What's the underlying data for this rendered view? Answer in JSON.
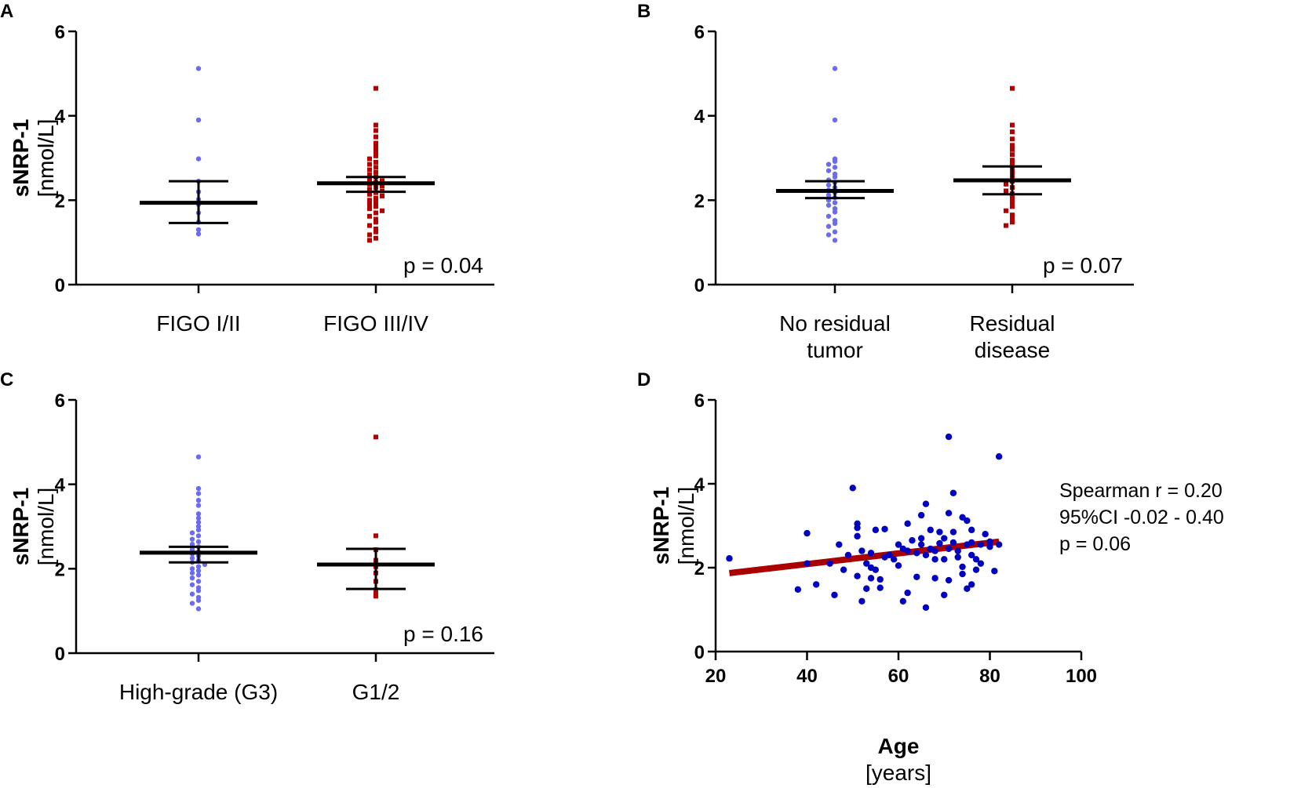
{
  "colors": {
    "blue_light": "#6b6bef",
    "red_dark": "#b30000",
    "blue_dark": "#0000c0",
    "fit_line": "#aa0000",
    "axis": "#000000"
  },
  "chart_data": [
    {
      "panel": "A",
      "type": "scatter",
      "title": "",
      "ylabel": "sNRP-1",
      "ylabel_unit": "[nmol/L]",
      "ylim": [
        0,
        6
      ],
      "yticks": [
        "0",
        "2",
        "4",
        "6"
      ],
      "pvalue": "p = 0.04",
      "groups": [
        {
          "label": "FIGO I/II",
          "label_lines": [
            "FIGO I/II"
          ],
          "color": "#6b6bef",
          "marker": "circle",
          "center": 1.94,
          "ci_low": 1.46,
          "ci_high": 2.45,
          "values": [
            5.12,
            3.9,
            2.98,
            2.45,
            2.2,
            2.02,
            1.9,
            1.7,
            1.48,
            1.3,
            1.2
          ]
        },
        {
          "label": "FIGO III/IV",
          "label_lines": [
            "FIGO III/IV"
          ],
          "color": "#b30000",
          "marker": "square",
          "center": 2.4,
          "ci_low": 2.2,
          "ci_high": 2.55,
          "values": [
            4.65,
            3.78,
            3.65,
            3.5,
            3.35,
            3.25,
            3.15,
            3.05,
            2.98,
            2.9,
            2.85,
            2.78,
            2.72,
            2.66,
            2.6,
            2.55,
            2.5,
            2.46,
            2.42,
            2.38,
            2.34,
            2.3,
            2.26,
            2.22,
            2.18,
            2.14,
            2.1,
            2.05,
            2.0,
            1.95,
            1.9,
            1.85,
            1.8,
            1.75,
            1.7,
            1.62,
            1.55,
            1.48,
            1.4,
            1.32,
            1.25,
            1.18,
            1.1,
            1.05
          ]
        }
      ]
    },
    {
      "panel": "B",
      "type": "scatter",
      "title": "",
      "ylabel": "sNRP-1",
      "ylabel_unit": "[nmol/L]",
      "ylim": [
        0,
        6
      ],
      "yticks": [
        "0",
        "2",
        "4",
        "6"
      ],
      "pvalue": "p = 0.07",
      "groups": [
        {
          "label": "No residual tumor",
          "label_lines": [
            "No residual",
            "tumor"
          ],
          "color": "#6b6bef",
          "marker": "circle",
          "center": 2.22,
          "ci_low": 2.05,
          "ci_high": 2.45,
          "values": [
            5.12,
            3.9,
            2.98,
            2.92,
            2.85,
            2.78,
            2.7,
            2.62,
            2.55,
            2.48,
            2.42,
            2.36,
            2.3,
            2.24,
            2.18,
            2.12,
            2.06,
            2.0,
            1.94,
            1.88,
            1.8,
            1.72,
            1.62,
            1.52,
            1.45,
            1.38,
            1.25,
            1.18,
            1.05
          ]
        },
        {
          "label": "Residual disease",
          "label_lines": [
            "Residual",
            "disease"
          ],
          "color": "#b30000",
          "marker": "square",
          "center": 2.47,
          "ci_low": 2.14,
          "ci_high": 2.8,
          "values": [
            4.65,
            3.78,
            3.62,
            3.45,
            3.3,
            3.2,
            3.08,
            2.95,
            2.85,
            2.75,
            2.65,
            2.55,
            2.45,
            2.38,
            2.3,
            2.22,
            2.15,
            2.05,
            1.95,
            1.85,
            1.75,
            1.65,
            1.55,
            1.48,
            1.4
          ]
        }
      ]
    },
    {
      "panel": "C",
      "type": "scatter",
      "title": "",
      "ylabel": "sNRP-1",
      "ylabel_unit": "[nmol/L]",
      "ylim": [
        0,
        6
      ],
      "yticks": [
        "0",
        "2",
        "4",
        "6"
      ],
      "pvalue": "p = 0.16",
      "groups": [
        {
          "label": "High-grade (G3)",
          "label_lines": [
            "High-grade (G3)"
          ],
          "color": "#6b6bef",
          "marker": "circle",
          "center": 2.38,
          "ci_low": 2.15,
          "ci_high": 2.52,
          "values": [
            4.65,
            3.9,
            3.78,
            3.62,
            3.5,
            3.3,
            3.2,
            3.1,
            3.0,
            2.92,
            2.85,
            2.78,
            2.7,
            2.64,
            2.58,
            2.52,
            2.46,
            2.4,
            2.35,
            2.3,
            2.25,
            2.2,
            2.15,
            2.1,
            2.05,
            2.0,
            1.95,
            1.9,
            1.85,
            1.78,
            1.7,
            1.62,
            1.55,
            1.48,
            1.4,
            1.32,
            1.25,
            1.18,
            1.05
          ]
        },
        {
          "label": "G1/2",
          "label_lines": [
            "G1/2"
          ],
          "color": "#b30000",
          "marker": "square",
          "center": 2.1,
          "ci_low": 1.52,
          "ci_high": 2.47,
          "values": [
            5.12,
            2.78,
            2.45,
            2.2,
            2.05,
            1.9,
            1.7,
            1.5,
            1.42,
            1.35
          ]
        }
      ]
    },
    {
      "panel": "D",
      "type": "scatter",
      "title": "",
      "ylabel": "sNRP-1",
      "ylabel_unit": "[nmol/L]",
      "xlabel": "Age",
      "xlabel_unit": "[years]",
      "xlim": [
        20,
        100
      ],
      "ylim": [
        0,
        6
      ],
      "xticks": [
        "20",
        "40",
        "60",
        "80",
        "100"
      ],
      "yticks": [
        "0",
        "2",
        "4",
        "6"
      ],
      "color": "#0000c0",
      "fit_line": {
        "x": [
          23,
          82
        ],
        "y": [
          1.87,
          2.62
        ],
        "color": "#aa0000"
      },
      "stats": [
        "Spearman r = 0.20",
        "95%CI -0.02 - 0.40",
        "p = 0.06"
      ],
      "points": [
        [
          23,
          2.22
        ],
        [
          38,
          1.48
        ],
        [
          40,
          2.82
        ],
        [
          40,
          2.1
        ],
        [
          42,
          1.6
        ],
        [
          45,
          2.1
        ],
        [
          46,
          1.35
        ],
        [
          47,
          2.55
        ],
        [
          48,
          1.95
        ],
        [
          49,
          2.3
        ],
        [
          50,
          3.9
        ],
        [
          51,
          3.05
        ],
        [
          51,
          2.95
        ],
        [
          51,
          2.75
        ],
        [
          51,
          1.8
        ],
        [
          52,
          2.4
        ],
        [
          52,
          1.2
        ],
        [
          53,
          1.5
        ],
        [
          53,
          2.1
        ],
        [
          54,
          2.35
        ],
        [
          54,
          1.75
        ],
        [
          54,
          2.0
        ],
        [
          55,
          2.9
        ],
        [
          55,
          1.95
        ],
        [
          56,
          1.52
        ],
        [
          56,
          1.72
        ],
        [
          57,
          2.92
        ],
        [
          57,
          2.25
        ],
        [
          58,
          2.3
        ],
        [
          59,
          2.2
        ],
        [
          60,
          2.55
        ],
        [
          60,
          2.05
        ],
        [
          61,
          2.45
        ],
        [
          61,
          1.2
        ],
        [
          62,
          1.4
        ],
        [
          62,
          3.05
        ],
        [
          62,
          2.4
        ],
        [
          63,
          2.65
        ],
        [
          64,
          2.35
        ],
        [
          64,
          1.78
        ],
        [
          65,
          3.25
        ],
        [
          65,
          2.55
        ],
        [
          65,
          2.7
        ],
        [
          66,
          3.52
        ],
        [
          66,
          2.3
        ],
        [
          66,
          1.05
        ],
        [
          67,
          2.9
        ],
        [
          67,
          2.45
        ],
        [
          68,
          2.2
        ],
        [
          68,
          2.4
        ],
        [
          68,
          1.75
        ],
        [
          69,
          2.85
        ],
        [
          69,
          2.58
        ],
        [
          70,
          2.7
        ],
        [
          70,
          2.2
        ],
        [
          70,
          1.35
        ],
        [
          71,
          5.12
        ],
        [
          71,
          3.3
        ],
        [
          71,
          2.45
        ],
        [
          71,
          1.7
        ],
        [
          72,
          3.78
        ],
        [
          72,
          2.85
        ],
        [
          72,
          2.6
        ],
        [
          73,
          2.4
        ],
        [
          73,
          2.25
        ],
        [
          74,
          1.85
        ],
        [
          74,
          3.2
        ],
        [
          74,
          2.02
        ],
        [
          75,
          2.55
        ],
        [
          75,
          3.12
        ],
        [
          75,
          1.5
        ],
        [
          76,
          2.9
        ],
        [
          76,
          2.6
        ],
        [
          76,
          2.3
        ],
        [
          76,
          1.6
        ],
        [
          77,
          2.2
        ],
        [
          77,
          1.95
        ],
        [
          78,
          2.1
        ],
        [
          78,
          2.55
        ],
        [
          79,
          2.8
        ],
        [
          80,
          2.62
        ],
        [
          80,
          2.5
        ],
        [
          81,
          1.92
        ],
        [
          82,
          4.65
        ],
        [
          82,
          2.55
        ]
      ]
    }
  ]
}
